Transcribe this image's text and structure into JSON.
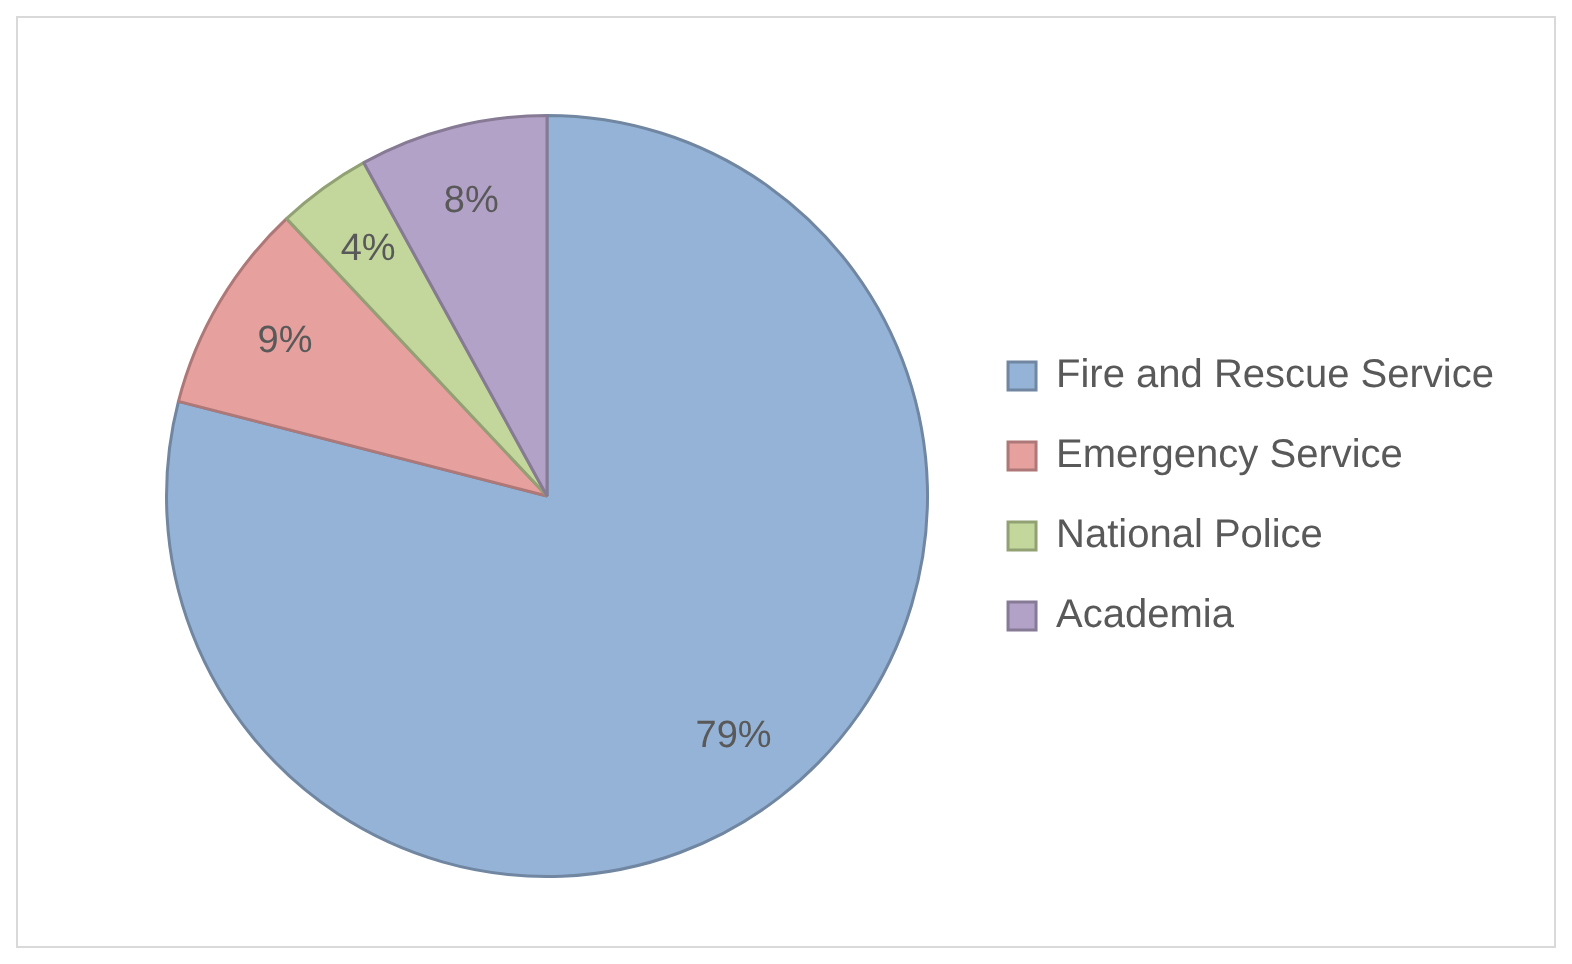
{
  "chart_data": {
    "type": "pie",
    "categories": [
      "Fire and Rescue Service",
      "Emergency Service",
      "National Police",
      "Academia"
    ],
    "values": [
      79,
      9,
      4,
      8
    ],
    "colors": [
      "#95b3d7",
      "#e6a09e",
      "#c3d69b",
      "#b3a2c7"
    ],
    "value_labels": [
      "79%",
      "9%",
      "4%",
      "8%"
    ],
    "legend": "right"
  }
}
